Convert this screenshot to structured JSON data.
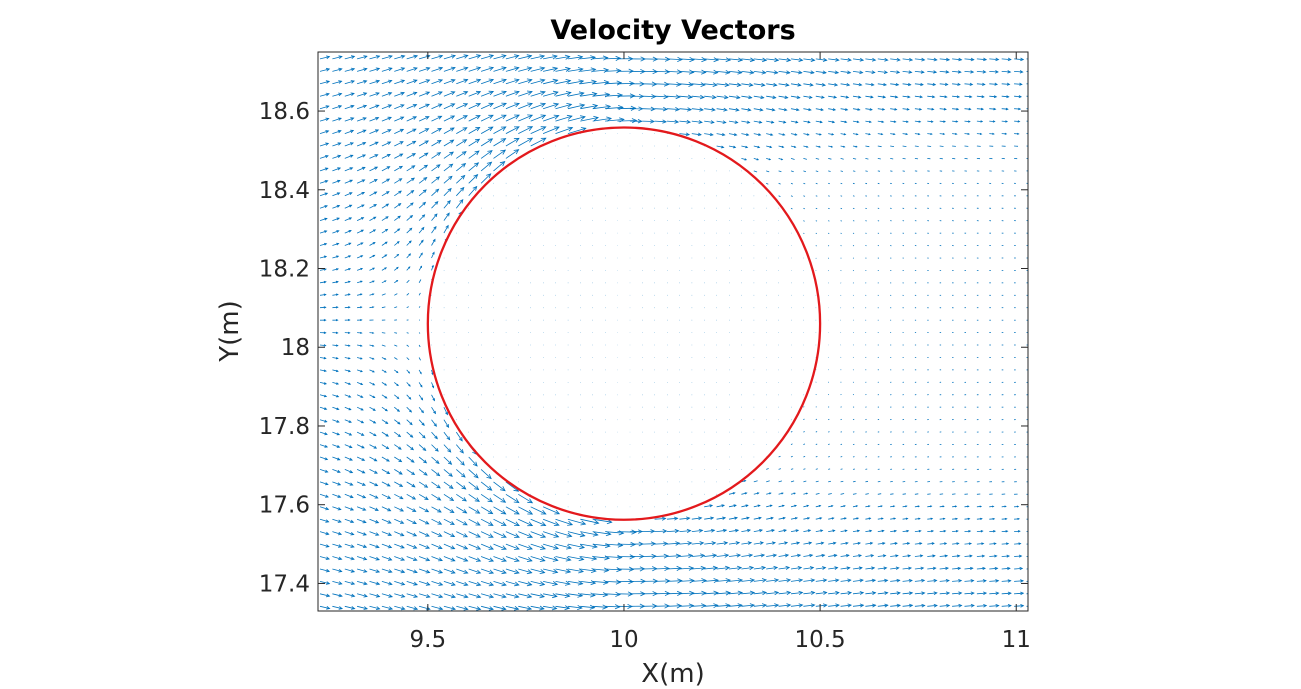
{
  "chart_data": {
    "type": "quiver",
    "title": "Velocity Vectors",
    "xlabel": "X(m)",
    "ylabel": "Y(m)",
    "xlim": [
      9.22,
      11.03
    ],
    "ylim": [
      17.33,
      18.75
    ],
    "xticks": [
      9.5,
      10,
      10.5,
      11
    ],
    "xtick_labels": [
      "9.5",
      "10",
      "10.5",
      "11"
    ],
    "yticks": [
      17.4,
      17.6,
      17.8,
      18.0,
      18.2,
      18.4,
      18.6
    ],
    "ytick_labels": [
      "17.4",
      "17.6",
      "17.8",
      "18",
      "18.2",
      "18.4",
      "18.6"
    ],
    "grid": false,
    "legend": "none",
    "colors": {
      "vectors": "#0072BD",
      "circle": "#E3191C",
      "axes": "#262626"
    },
    "circle": {
      "center": [
        10.0,
        18.06
      ],
      "radius": 0.5
    },
    "vector_field": {
      "grid_spacing": [
        0.0316,
        0.0316
      ],
      "free_stream": {
        "upper_left": [
          1.0,
          -0.6
        ],
        "lower_left": [
          1.0,
          0.55
        ],
        "right": [
          1.0,
          0.0
        ]
      },
      "interior": "near-zero",
      "wake": "weak flow behind cylinder, strengthening toward top and bottom edges"
    }
  }
}
